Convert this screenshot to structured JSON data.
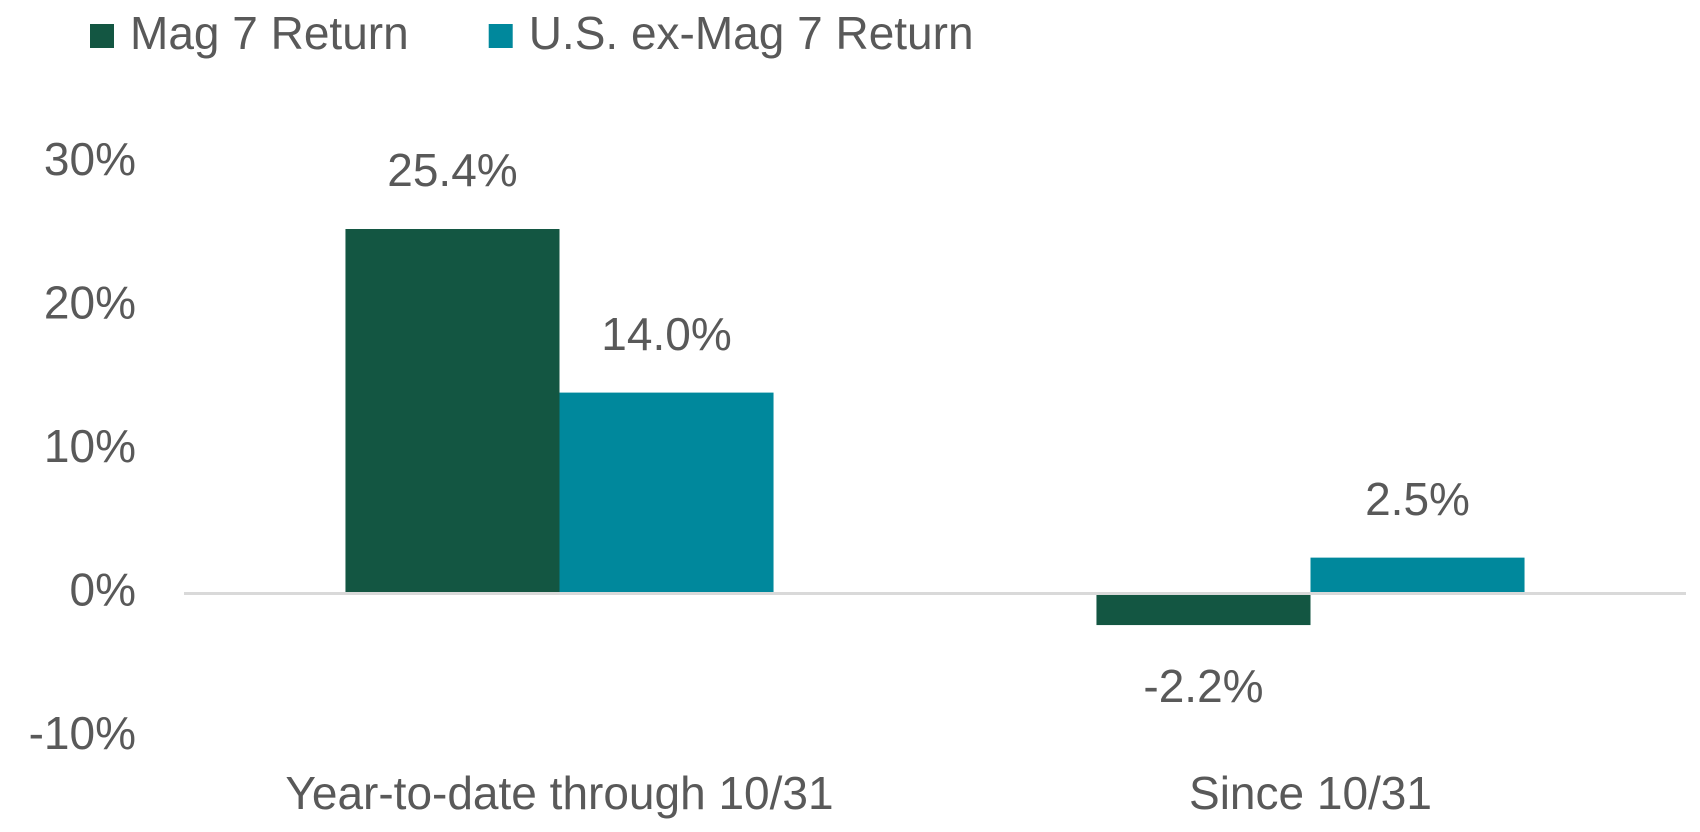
{
  "chart_data": {
    "type": "bar",
    "categories": [
      "Year-to-date through 10/31",
      "Since 10/31"
    ],
    "series": [
      {
        "name": "Mag 7 Return",
        "color": "#135642",
        "values": [
          25.4,
          -2.2
        ],
        "value_labels": [
          "25.4%",
          "-2.2%"
        ]
      },
      {
        "name": "U.S. ex-Mag 7 Return",
        "color": "#00889c",
        "values": [
          14.0,
          2.5
        ],
        "value_labels": [
          "14.0%",
          "2.5%"
        ]
      }
    ],
    "ylim": [
      -10,
      30
    ],
    "yticks": [
      {
        "value": -10,
        "label": "-10%"
      },
      {
        "value": 0,
        "label": "0%"
      },
      {
        "value": 10,
        "label": "10%"
      },
      {
        "value": 20,
        "label": "20%"
      },
      {
        "value": 30,
        "label": "30%"
      }
    ],
    "legend": "top-left"
  }
}
